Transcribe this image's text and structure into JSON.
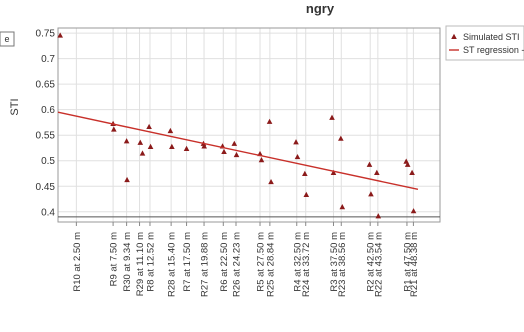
{
  "chart_data": {
    "type": "scatter",
    "title_fragment": "ngry",
    "left_box_label": "e",
    "ylabel": "STI",
    "ylim": [
      0.38,
      0.76
    ],
    "yticks": [
      0.4,
      0.45,
      0.5,
      0.55,
      0.6,
      0.65,
      0.7,
      0.75
    ],
    "ytick_labels": [
      "0.4",
      "0.45",
      "0.5",
      "0.55",
      "0.6",
      "0.65",
      "0.7",
      "0.75"
    ],
    "xlim": [
      0,
      52
    ],
    "x_ticks": [
      {
        "x": 2.5,
        "label": "R10 at 2.50 m"
      },
      {
        "x": 7.5,
        "label": "R9 at 7.50 m"
      },
      {
        "x": 9.34,
        "label": "R30 at 9.34 m"
      },
      {
        "x": 11.1,
        "label": "R29 at 11.10 m"
      },
      {
        "x": 12.52,
        "label": "R8 at 12.52 m"
      },
      {
        "x": 15.4,
        "label": "R28 at 15.40 m"
      },
      {
        "x": 17.5,
        "label": "R7 at 17.50 m"
      },
      {
        "x": 19.88,
        "label": "R27 at 19.88 m"
      },
      {
        "x": 22.5,
        "label": "R6 at 22.50 m"
      },
      {
        "x": 24.23,
        "label": "R26 at 24.23 m"
      },
      {
        "x": 27.5,
        "label": "R5 at 27.50 m"
      },
      {
        "x": 28.84,
        "label": "R25 at 28.84 m"
      },
      {
        "x": 32.5,
        "label": "R4 at 32.50 m"
      },
      {
        "x": 33.72,
        "label": "R24 at 33.72 m"
      },
      {
        "x": 37.5,
        "label": "R3 at 37.50 m"
      },
      {
        "x": 38.56,
        "label": "R23 at 38.56 m"
      },
      {
        "x": 42.5,
        "label": "R2 at 42.50 m"
      },
      {
        "x": 43.54,
        "label": "R22 at 43.54 m"
      },
      {
        "x": 47.5,
        "label": "R1 at 47.50 m"
      },
      {
        "x": 48.38,
        "label": "R21 at 48.38 m"
      }
    ],
    "series": [
      {
        "name": "Simulated STI",
        "color": "#8b1a1a",
        "marker": "triangle",
        "points": [
          {
            "x": 0.3,
            "y": 0.745
          },
          {
            "x": 7.5,
            "y": 0.572
          },
          {
            "x": 7.6,
            "y": 0.561
          },
          {
            "x": 9.34,
            "y": 0.538
          },
          {
            "x": 9.4,
            "y": 0.462
          },
          {
            "x": 11.2,
            "y": 0.535
          },
          {
            "x": 11.5,
            "y": 0.514
          },
          {
            "x": 12.4,
            "y": 0.566
          },
          {
            "x": 12.6,
            "y": 0.527
          },
          {
            "x": 15.3,
            "y": 0.558
          },
          {
            "x": 15.5,
            "y": 0.527
          },
          {
            "x": 17.5,
            "y": 0.523
          },
          {
            "x": 19.8,
            "y": 0.533
          },
          {
            "x": 19.9,
            "y": 0.528
          },
          {
            "x": 22.4,
            "y": 0.528
          },
          {
            "x": 22.6,
            "y": 0.517
          },
          {
            "x": 24.0,
            "y": 0.533
          },
          {
            "x": 24.3,
            "y": 0.511
          },
          {
            "x": 27.5,
            "y": 0.513
          },
          {
            "x": 27.7,
            "y": 0.501
          },
          {
            "x": 28.8,
            "y": 0.576
          },
          {
            "x": 29.0,
            "y": 0.458
          },
          {
            "x": 32.4,
            "y": 0.536
          },
          {
            "x": 32.6,
            "y": 0.507
          },
          {
            "x": 33.6,
            "y": 0.474
          },
          {
            "x": 33.8,
            "y": 0.433
          },
          {
            "x": 37.3,
            "y": 0.584
          },
          {
            "x": 37.5,
            "y": 0.476
          },
          {
            "x": 38.5,
            "y": 0.543
          },
          {
            "x": 38.7,
            "y": 0.409
          },
          {
            "x": 42.4,
            "y": 0.492
          },
          {
            "x": 42.6,
            "y": 0.434
          },
          {
            "x": 43.4,
            "y": 0.476
          },
          {
            "x": 43.6,
            "y": 0.391
          },
          {
            "x": 47.4,
            "y": 0.498
          },
          {
            "x": 47.6,
            "y": 0.492
          },
          {
            "x": 48.2,
            "y": 0.476
          },
          {
            "x": 48.4,
            "y": 0.401
          }
        ]
      },
      {
        "name": "ST regression",
        "color": "#c8302a",
        "type": "line",
        "points": [
          {
            "x": 0,
            "y": 0.595
          },
          {
            "x": 49,
            "y": 0.444
          }
        ]
      }
    ],
    "legend": {
      "position": "top-right",
      "entries": [
        {
          "label": "Simulated STI",
          "marker": "triangle",
          "color": "#8b1a1a"
        },
        {
          "label": "ST regression -",
          "marker": "line",
          "color": "#c8302a"
        }
      ]
    },
    "grid": true,
    "frame_color": "#999999",
    "grid_color": "#e0e0e0",
    "hline": {
      "y": 0.39,
      "color": "#555555"
    }
  }
}
